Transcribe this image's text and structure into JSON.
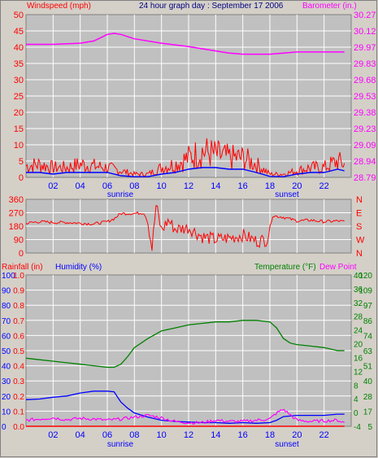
{
  "header": {
    "windspeed_label": "Windspeed (mph)",
    "graph_title": "24 hour graph day : September 17 2006",
    "barometer_label": "Barometer (in.)"
  },
  "x_axis": {
    "ticks": [
      "02",
      "04",
      "06",
      "08",
      "10",
      "12",
      "14",
      "16",
      "18",
      "20",
      "22"
    ],
    "sunrise_label": "sunrise",
    "sunset_label": "sunset"
  },
  "panel3_header": {
    "rainfall_label": "Rainfall (in)",
    "humidity_label": "Humidity (%)",
    "temperature_label": "Temperature (°F)",
    "dewpoint_label": "Dew Point"
  },
  "colors": {
    "background": "#d4d0c8",
    "plot": "#c0c0c0",
    "grid": "#ffffff",
    "wind": "#ff0000",
    "wind_avg": "#0000ff",
    "barometer": "#ff00ff",
    "direction": "#ff0000",
    "humidity": "#0000ff",
    "temperature": "#008000",
    "dewpoint": "#ff00ff",
    "rain": "#ff0000",
    "axis_text_x": "#0000ff",
    "axis_text_temp": "#008000"
  },
  "chart_data": [
    {
      "type": "line",
      "title": "24 hour graph day : September 17 2006",
      "xlabel": "",
      "x_ticks": [
        "02",
        "04",
        "06",
        "08",
        "10",
        "12",
        "14",
        "16",
        "18",
        "20",
        "22"
      ],
      "left_axis": {
        "label": "Windspeed (mph)",
        "ticks": [
          "0",
          "5",
          "10",
          "15",
          "20",
          "25",
          "30",
          "35",
          "40",
          "45",
          "50"
        ],
        "range": [
          0,
          50
        ]
      },
      "right_axis": {
        "label": "Barometer (in.)",
        "ticks": [
          "28.79",
          "28.94",
          "29.09",
          "29.23",
          "29.38",
          "29.53",
          "29.68",
          "29.83",
          "29.97",
          "30.12",
          "30.27"
        ],
        "range": [
          28.79,
          30.27
        ]
      },
      "series": [
        {
          "name": "Barometer (in.)",
          "axis": "right",
          "x": [
            0,
            2,
            4,
            5,
            5.5,
            6,
            6.5,
            7,
            8,
            10,
            12,
            14,
            15,
            16,
            17,
            18,
            19,
            20,
            21,
            22,
            23,
            23.5
          ],
          "y": [
            30.0,
            30.0,
            30.01,
            30.03,
            30.06,
            30.09,
            30.1,
            30.09,
            30.05,
            30.01,
            29.98,
            29.94,
            29.92,
            29.91,
            29.91,
            29.91,
            29.92,
            29.93,
            29.93,
            29.93,
            29.93,
            29.93
          ]
        },
        {
          "name": "Windspeed (mph)",
          "axis": "left",
          "x": [
            0,
            1,
            2,
            3,
            4,
            5,
            6,
            7,
            8,
            9,
            10,
            11,
            12,
            13,
            14,
            15,
            16,
            17,
            18,
            19,
            20,
            21,
            22,
            23,
            23.5
          ],
          "y": [
            3.5,
            4,
            3,
            3,
            4,
            3.5,
            3,
            2,
            1,
            1,
            3,
            4,
            6,
            8,
            7,
            6,
            6,
            4,
            1,
            1,
            2,
            3,
            3,
            5,
            4
          ]
        },
        {
          "name": "Average wind (mph)",
          "axis": "left",
          "x": [
            0,
            1,
            2,
            3,
            4,
            5,
            6,
            7,
            8,
            9,
            10,
            11,
            12,
            13,
            14,
            15,
            16,
            17,
            18,
            19,
            20,
            21,
            22,
            23,
            23.5
          ],
          "y": [
            1.5,
            1.5,
            1,
            1.5,
            1.5,
            1.5,
            1.5,
            0.5,
            0.2,
            0.2,
            1,
            1.5,
            2.5,
            3,
            3,
            2.5,
            2.5,
            1.5,
            0.3,
            0.2,
            1,
            1.5,
            1.5,
            2.5,
            2
          ]
        }
      ]
    },
    {
      "type": "line",
      "title": "",
      "x_ticks": [
        "02",
        "04",
        "06",
        "08",
        "10",
        "12",
        "14",
        "16",
        "18",
        "20",
        "22"
      ],
      "left_axis": {
        "label": "",
        "ticks": [
          "0",
          "90",
          "180",
          "270",
          "360"
        ],
        "range": [
          0,
          360
        ]
      },
      "right_axis": {
        "label": "",
        "ticks": [
          "N",
          "W",
          "S",
          "E",
          "N"
        ]
      },
      "series": [
        {
          "name": "Wind direction",
          "x": [
            0,
            1,
            2,
            3,
            4,
            5,
            6,
            6.5,
            7,
            8,
            8.7,
            9,
            9.3,
            9.6,
            10,
            10.5,
            11,
            12,
            13,
            14,
            15,
            16,
            17,
            17.8,
            18.2,
            19,
            20,
            21,
            22,
            23,
            23.5
          ],
          "y": [
            200,
            210,
            205,
            205,
            200,
            195,
            210,
            230,
            265,
            265,
            270,
            210,
            30,
            320,
            150,
            220,
            160,
            170,
            110,
            90,
            100,
            120,
            80,
            90,
            250,
            240,
            215,
            220,
            210,
            215,
            210
          ]
        }
      ]
    },
    {
      "type": "line",
      "title": "",
      "x_ticks": [
        "02",
        "04",
        "06",
        "08",
        "10",
        "12",
        "14",
        "16",
        "18",
        "20",
        "22"
      ],
      "axes": [
        {
          "label": "Rainfall (in)",
          "ticks": [
            "0.0",
            "0.1",
            "0.2",
            "0.3",
            "0.4",
            "0.5",
            "0.6",
            "0.7",
            "0.8",
            "0.9",
            "1.0"
          ],
          "range": [
            0,
            1.0
          ]
        },
        {
          "label": "Humidity (%)",
          "ticks": [
            "0",
            "10",
            "20",
            "30",
            "40",
            "50",
            "60",
            "70",
            "80",
            "90",
            "100"
          ],
          "range": [
            0,
            100
          ]
        },
        {
          "label": "Temperature (°F)",
          "ticks": [
            "-4",
            "0",
            "4",
            "8",
            "12",
            "16",
            "20",
            "24",
            "28",
            "32",
            "36",
            "40"
          ],
          "range": [
            -4,
            40
          ]
        },
        {
          "label": "Dew Point",
          "ticks": [
            "5",
            "17",
            "28",
            "40",
            "51",
            "63",
            "74",
            "86",
            "97",
            "109",
            "120"
          ],
          "range": [
            5,
            120
          ]
        }
      ],
      "series": [
        {
          "name": "Humidity (%)",
          "axis": "Humidity (%)",
          "x": [
            0,
            1,
            2,
            3,
            4,
            5,
            6,
            6.5,
            7,
            7.5,
            8,
            9,
            10,
            11,
            12,
            13,
            14,
            15,
            16,
            17,
            18,
            18.5,
            19,
            19.5,
            20,
            21,
            22,
            23,
            23.5
          ],
          "y": [
            45,
            44,
            43,
            42,
            41,
            40,
            39,
            39,
            41,
            46,
            52,
            58,
            63,
            65,
            67,
            68,
            69,
            69,
            70,
            70,
            69,
            65,
            58,
            55,
            54,
            53,
            52,
            50,
            50
          ]
        },
        {
          "name": "Temperature (°F)",
          "axis": "Temperature (°F)",
          "x": [
            0,
            1,
            2,
            3,
            4,
            5,
            6,
            6.5,
            7,
            7.5,
            8,
            9,
            10,
            11,
            12,
            13,
            14,
            15,
            16,
            17,
            18,
            18.5,
            19,
            20,
            21,
            22,
            23,
            23.5
          ],
          "y": [
            4.4,
            4.5,
            4.8,
            5.0,
            5.5,
            5.8,
            5.8,
            5.7,
            4.0,
            3.0,
            2.2,
            1.5,
            1.0,
            0.8,
            0.7,
            0.6,
            0.6,
            0.5,
            0.6,
            0.5,
            0.6,
            1.0,
            1.6,
            1.8,
            1.8,
            1.8,
            2.0,
            2.0
          ]
        },
        {
          "name": "Dew Point",
          "axis": "Temperature (°F)",
          "x": [
            0,
            1,
            2,
            3,
            4,
            5,
            6,
            7,
            8,
            9,
            10,
            11,
            12,
            13,
            14,
            15,
            16,
            17,
            18,
            18.5,
            19,
            20,
            21,
            22,
            23,
            23.5
          ],
          "y": [
            1.0,
            1.2,
            1.4,
            1.1,
            1.3,
            1.2,
            1.0,
            1.2,
            1.5,
            1.8,
            1.4,
            0.8,
            0.6,
            0.6,
            1.0,
            0.8,
            0.8,
            1.0,
            1.2,
            2.2,
            2.8,
            1.0,
            0.8,
            0.9,
            1.0,
            0.6
          ]
        },
        {
          "name": "Rainfall (in)",
          "axis": "Rainfall (in)",
          "x": [
            0,
            23.5
          ],
          "y": [
            0.0,
            0.0
          ]
        }
      ]
    }
  ]
}
